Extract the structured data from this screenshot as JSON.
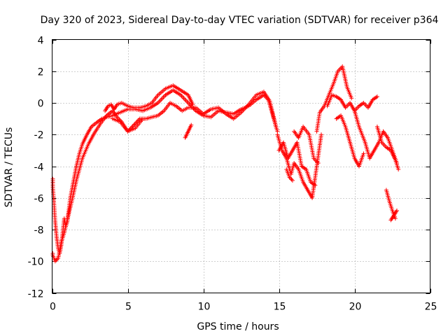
{
  "chart_data": {
    "type": "scatter",
    "title": "Day 320 of 2023, Sidereal Day-to-day VTEC variation (SDTVAR) for receiver p364",
    "xlabel": "GPS time / hours",
    "ylabel": "SDTVAR / TECUs",
    "xlim": [
      0,
      25
    ],
    "ylim": [
      -12,
      4
    ],
    "xticks": [
      0,
      5,
      10,
      15,
      20,
      25
    ],
    "yticks": [
      -12,
      -10,
      -8,
      -6,
      -4,
      -2,
      0,
      2,
      4
    ],
    "grid": true,
    "marker": "+",
    "series": [
      {
        "name": "SDTVAR p364",
        "color": "#ff0000",
        "tracks": [
          {
            "x": [
              0.0,
              0.1,
              0.2,
              0.3,
              0.4,
              0.5,
              0.6,
              0.7,
              0.8,
              0.9,
              1.0,
              1.2,
              1.4,
              1.6,
              1.8,
              2.0,
              2.3,
              2.6,
              3.0,
              3.3,
              3.6,
              4.0,
              4.5,
              5.0,
              5.5,
              6.0,
              6.5,
              7.0,
              7.5,
              8.0,
              8.5,
              9.0,
              9.5,
              10.0,
              10.5,
              11.0,
              11.5,
              12.0,
              12.5,
              13.0,
              13.5,
              14.0,
              14.3,
              14.6,
              14.9
            ],
            "y": [
              -4.8,
              -6.0,
              -7.5,
              -8.5,
              -9.2,
              -9.5,
              -9.0,
              -8.2,
              -7.3,
              -7.8,
              -7.5,
              -6.0,
              -5.0,
              -4.0,
              -3.2,
              -2.6,
              -2.0,
              -1.5,
              -1.2,
              -1.0,
              -0.9,
              -0.8,
              -0.6,
              -0.4,
              -0.4,
              -0.5,
              -0.3,
              0.0,
              0.5,
              0.8,
              0.5,
              0.0,
              -0.5,
              -0.8,
              -0.9,
              -0.5,
              -0.6,
              -0.7,
              -0.4,
              -0.2,
              0.2,
              0.5,
              0.2,
              -0.8,
              -1.8
            ]
          },
          {
            "x": [
              0.0,
              0.2,
              0.4,
              0.6,
              0.8,
              1.0,
              1.3,
              1.6,
              2.0,
              2.4,
              2.8,
              3.2,
              3.6,
              4.0,
              4.3,
              4.6,
              5.0,
              5.4,
              5.8,
              6.2,
              6.6,
              7.0,
              7.4,
              7.8,
              8.2,
              8.6,
              9.0,
              9.5,
              10.0,
              10.5,
              11.0,
              11.5,
              12.0,
              12.5,
              13.0,
              13.5,
              14.0,
              14.4,
              14.8
            ],
            "y": [
              -9.5,
              -10.0,
              -9.8,
              -8.8,
              -8.2,
              -7.4,
              -6.2,
              -4.9,
              -3.5,
              -2.6,
              -1.9,
              -1.3,
              -0.8,
              -0.5,
              -0.9,
              -1.2,
              -1.8,
              -1.4,
              -1.0,
              -1.0,
              -0.9,
              -0.8,
              -0.5,
              0.0,
              -0.2,
              -0.5,
              -0.3,
              -0.3,
              -0.7,
              -0.4,
              -0.3,
              -0.7,
              -1.0,
              -0.6,
              -0.1,
              0.5,
              0.7,
              0.1,
              -1.5
            ]
          },
          {
            "x": [
              3.5,
              3.7,
              3.9,
              4.1,
              4.3,
              4.6,
              5.0,
              5.4,
              5.8,
              6.2,
              6.6,
              7.0,
              7.5,
              8.0,
              8.5,
              9.0,
              9.3
            ],
            "y": [
              -0.5,
              -0.2,
              -0.1,
              -0.4,
              -0.1,
              0.0,
              -0.2,
              -0.3,
              -0.3,
              -0.2,
              0.0,
              0.5,
              0.9,
              1.1,
              0.8,
              0.5,
              -0.1
            ]
          },
          {
            "x": [
              4.0,
              4.5,
              5.0,
              5.5,
              6.0
            ],
            "y": [
              -1.0,
              -1.2,
              -1.8,
              -1.6,
              -1.0
            ]
          },
          {
            "x": [
              8.8,
              9.0,
              9.2
            ],
            "y": [
              -2.2,
              -1.8,
              -1.4
            ]
          },
          {
            "x": [
              14.9,
              15.2,
              15.5,
              15.8,
              16.0,
              16.3,
              16.6,
              16.9,
              17.2,
              17.5,
              17.8
            ],
            "y": [
              -2.0,
              -3.0,
              -3.5,
              -4.5,
              -3.8,
              -4.2,
              -5.0,
              -5.5,
              -6.0,
              -4.0,
              -2.0
            ]
          },
          {
            "x": [
              15.0,
              15.3,
              15.6,
              15.9,
              16.2,
              16.5,
              16.8,
              17.1,
              17.4
            ],
            "y": [
              -3.0,
              -2.5,
              -3.5,
              -3.0,
              -2.5,
              -4.0,
              -4.2,
              -5.0,
              -5.2
            ]
          },
          {
            "x": [
              15.5,
              15.7,
              15.9
            ],
            "y": [
              -4.2,
              -4.7,
              -4.9
            ]
          },
          {
            "x": [
              16.0,
              16.3,
              16.6,
              17.0,
              17.3,
              17.6
            ],
            "y": [
              -1.8,
              -2.2,
              -1.5,
              -2.0,
              -3.5,
              -3.8
            ]
          },
          {
            "x": [
              17.5,
              17.7,
              18.0,
              18.3,
              18.6,
              18.9,
              19.2,
              19.5,
              19.8
            ],
            "y": [
              -1.8,
              -0.6,
              -0.2,
              0.5,
              1.2,
              2.0,
              2.3,
              1.0,
              0.3
            ]
          },
          {
            "x": [
              18.2,
              18.5,
              18.8,
              19.1,
              19.4,
              19.7,
              20.0,
              20.3,
              20.6,
              20.9,
              21.2,
              21.5
            ],
            "y": [
              -0.2,
              0.5,
              0.4,
              0.2,
              -0.3,
              0.0,
              -0.5,
              -0.2,
              0.0,
              -0.3,
              0.2,
              0.4
            ]
          },
          {
            "x": [
              18.8,
              19.1,
              19.4,
              19.7,
              20.0,
              20.3,
              20.6
            ],
            "y": [
              -1.0,
              -0.8,
              -1.5,
              -2.5,
              -3.5,
              -4.0,
              -3.2
            ]
          },
          {
            "x": [
              20.0,
              20.3,
              20.7,
              21.0,
              21.3,
              21.6,
              21.9,
              22.2,
              22.5,
              22.8
            ],
            "y": [
              -0.5,
              -1.5,
              -2.5,
              -3.5,
              -3.0,
              -2.5,
              -1.8,
              -2.2,
              -3.0,
              -3.8
            ]
          },
          {
            "x": [
              21.5,
              21.8,
              22.1,
              22.4,
              22.7,
              22.9
            ],
            "y": [
              -1.5,
              -2.5,
              -2.8,
              -3.0,
              -3.6,
              -4.2
            ]
          },
          {
            "x": [
              22.1,
              22.3,
              22.5,
              22.7
            ],
            "y": [
              -5.5,
              -6.2,
              -6.8,
              -7.3
            ]
          },
          {
            "x": [
              22.4,
              22.6,
              22.8
            ],
            "y": [
              -7.4,
              -7.1,
              -6.8
            ]
          }
        ]
      }
    ]
  }
}
